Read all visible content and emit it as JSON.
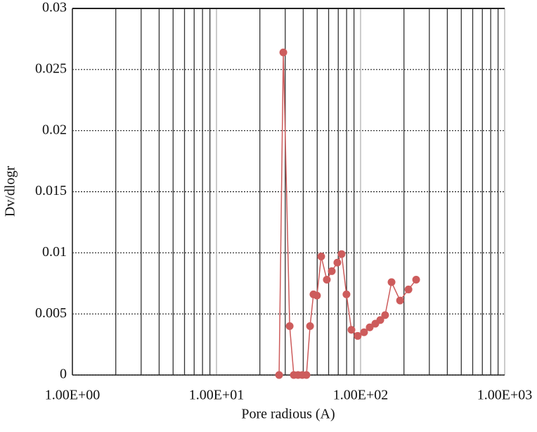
{
  "chart_data": {
    "type": "line",
    "xlabel": "Pore radious (A)",
    "ylabel": "Dv/dlogr",
    "xscale": "log",
    "grid": true,
    "color": "#cd5c5c",
    "x": [
      27.2,
      29.1,
      32.2,
      34.4,
      36.8,
      39.4,
      42.1,
      44.6,
      47.1,
      49.8,
      53.3,
      58.3,
      63.1,
      69.0,
      73.8,
      79.8,
      86.4,
      95.5,
      105.7,
      115.7,
      126.6,
      137,
      148,
      164,
      188,
      215,
      243
    ],
    "values": [
      0,
      0.0264,
      0.004,
      0,
      0,
      0,
      0,
      0.004,
      0.0066,
      0.0065,
      0.0097,
      0.0078,
      0.0085,
      0.0092,
      0.0099,
      0.0066,
      0.0037,
      0.0032,
      0.0035,
      0.0039,
      0.0042,
      0.0045,
      0.0049,
      0.0076,
      0.0061,
      0.007,
      0.0078
    ],
    "xlim": [
      1,
      1000
    ],
    "xticks": [
      {
        "value": 1,
        "label": "1.00E+00"
      },
      {
        "value": 10,
        "label": "1.00E+01"
      },
      {
        "value": 100,
        "label": "1.00E+02"
      },
      {
        "value": 1000,
        "label": "1.00E+03"
      }
    ],
    "ylim": [
      0,
      0.03
    ],
    "yticks": [
      0,
      0.005,
      0.01,
      0.015,
      0.02,
      0.025,
      0.03
    ]
  }
}
